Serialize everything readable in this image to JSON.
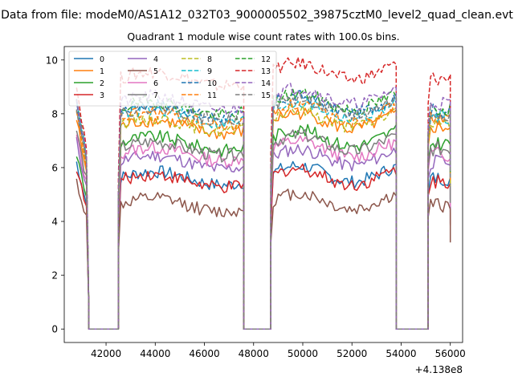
{
  "figure": {
    "suptitle": "Data from file: modeM0/AS1A12_032T03_9000005502_39875cztM0_level2_quad_clean.evt"
  },
  "chart_data": {
    "type": "line",
    "title": "Quadrant 1 module wise count rates with 100.0s bins.",
    "xlabel": "",
    "ylabel": "",
    "x_offset_label": "+4.138e8",
    "xlim": [
      40300,
      56500
    ],
    "ylim": [
      -0.5,
      10.5
    ],
    "xticks": [
      42000,
      44000,
      46000,
      48000,
      50000,
      52000,
      54000,
      56000
    ],
    "xtick_labels": [
      "42000",
      "44000",
      "46000",
      "48000",
      "50000",
      "52000",
      "54000",
      "56000"
    ],
    "yticks": [
      0,
      2,
      4,
      6,
      8,
      10
    ],
    "ytick_labels": [
      "0",
      "2",
      "4",
      "6",
      "8",
      "10"
    ],
    "grid": false,
    "legend_position": "top-left",
    "legend_columns": 4,
    "orbit_segments": [
      {
        "start": 40800,
        "end": 41200,
        "data_gap_end": 41300
      },
      {
        "start": 42500,
        "end": 47600,
        "data_gap_end": 47600
      },
      {
        "start": 48700,
        "end": 53800,
        "data_gap_end": 53800
      },
      {
        "start": 55100,
        "end": 56000,
        "data_gap_end": 56000
      }
    ],
    "zero_segments": [
      [
        41300,
        42500
      ],
      [
        47600,
        48700
      ],
      [
        53800,
        55100
      ]
    ],
    "series": [
      {
        "name": "0",
        "color": "#1f77b4",
        "dash": "solid",
        "level": 5.6,
        "start_level": 6.2
      },
      {
        "name": "1",
        "color": "#ff7f0e",
        "dash": "solid",
        "level": 7.5,
        "start_level": 7.8
      },
      {
        "name": "2",
        "color": "#2ca02c",
        "dash": "solid",
        "level": 6.9,
        "start_level": 6.5
      },
      {
        "name": "3",
        "color": "#d62728",
        "dash": "solid",
        "level": 5.5,
        "start_level": 6.0
      },
      {
        "name": "4",
        "color": "#9467bd",
        "dash": "solid",
        "level": 6.2,
        "start_level": 7.0
      },
      {
        "name": "5",
        "color": "#8c564b",
        "dash": "solid",
        "level": 4.6,
        "start_level": 5.5
      },
      {
        "name": "6",
        "color": "#e377c2",
        "dash": "solid",
        "level": 6.5,
        "start_level": 7.2
      },
      {
        "name": "7",
        "color": "#7f7f7f",
        "dash": "solid",
        "level": 6.7,
        "start_level": 7.4
      },
      {
        "name": "8",
        "color": "#bcbd22",
        "dash": "dashed",
        "level": 7.6,
        "start_level": 8.2
      },
      {
        "name": "9",
        "color": "#17becf",
        "dash": "dashed",
        "level": 7.9,
        "start_level": 8.6
      },
      {
        "name": "10",
        "color": "#1f77b4",
        "dash": "dashed",
        "level": 8.1,
        "start_level": 8.4
      },
      {
        "name": "11",
        "color": "#ff7f0e",
        "dash": "dashed",
        "level": 7.8,
        "start_level": 8.0
      },
      {
        "name": "12",
        "color": "#2ca02c",
        "dash": "dashed",
        "level": 8.2,
        "start_level": 8.5
      },
      {
        "name": "13",
        "color": "#d62728",
        "dash": "dashed",
        "level": 9.3,
        "start_level": 9.0
      },
      {
        "name": "14",
        "color": "#9467bd",
        "dash": "dashed",
        "level": 8.4,
        "start_level": 8.6
      },
      {
        "name": "15",
        "color": "#7f7f7f",
        "dash": "dashed",
        "level": 8.0,
        "start_level": 8.3
      }
    ],
    "noise_amplitude": 0.35,
    "bin_seconds": 100
  }
}
